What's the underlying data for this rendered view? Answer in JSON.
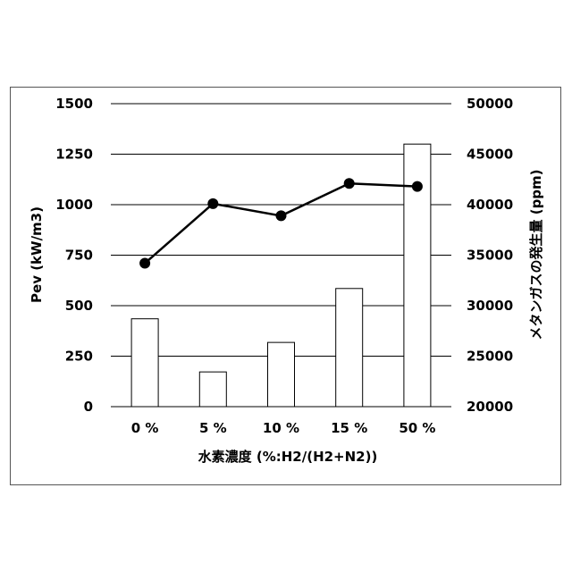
{
  "chart_data": {
    "type": "bar",
    "categories": [
      "0 %",
      "5 %",
      "10 %",
      "15 %",
      "50 %"
    ],
    "xlabel": "水素濃度 (%:H2/(H2+N2))",
    "left_axis": {
      "label": "Pev (kW/m3)",
      "ylim": [
        0,
        1500
      ],
      "ticks": [
        "0",
        "250",
        "500",
        "750",
        "1000",
        "1250",
        "1500"
      ]
    },
    "right_axis": {
      "label": "メタンガスの発生量 (ppm)",
      "ylim": [
        20000,
        50000
      ],
      "ticks": [
        "20000",
        "25000",
        "30000",
        "35000",
        "40000",
        "45000",
        "50000"
      ]
    },
    "series": [
      {
        "axis": "left",
        "kind": "bar",
        "values": [
          435,
          172,
          318,
          585,
          1300
        ]
      },
      {
        "axis": "right",
        "kind": "line",
        "values": [
          34200,
          40100,
          38900,
          42100,
          41800
        ]
      }
    ],
    "grid": true,
    "colors": {
      "bar_fill": "#ffffff",
      "bar_stroke": "#000000",
      "line": "#000000",
      "grid": "#000000"
    }
  }
}
